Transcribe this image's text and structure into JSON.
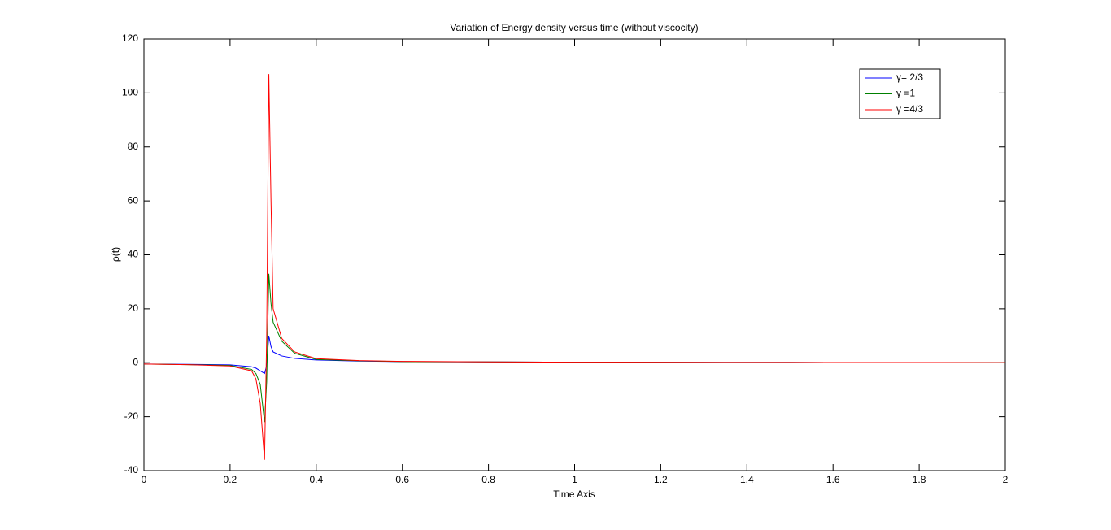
{
  "chart_data": {
    "type": "line",
    "title": "Variation of Energy density versus time (without viscocity)",
    "x_label": "Time Axis",
    "y_label": "ρ(t)",
    "x": [
      0,
      0.1,
      0.2,
      0.25,
      0.26,
      0.27,
      0.28,
      0.285,
      0.29,
      0.295,
      0.3,
      0.32,
      0.35,
      0.4,
      0.5,
      0.6,
      0.8,
      1,
      1.5,
      2
    ],
    "series": [
      {
        "name": "γ= 2/3",
        "color": "#0000ff",
        "values": [
          -0.5,
          -0.6,
          -0.8,
          -1.5,
          -2,
          -3,
          -4,
          -1,
          10,
          6,
          4,
          2.5,
          1.6,
          1,
          0.6,
          0.4,
          0.3,
          0.2,
          0.1,
          0.05
        ]
      },
      {
        "name": "γ =1",
        "color": "#008000",
        "values": [
          -0.5,
          -0.7,
          -1,
          -2.5,
          -4,
          -8,
          -22,
          -7,
          33,
          22,
          15,
          8,
          3.5,
          1.2,
          0.7,
          0.4,
          0.3,
          0.2,
          0.1,
          0.05
        ]
      },
      {
        "name": "γ =4/3",
        "color": "#ff0000",
        "values": [
          -0.5,
          -0.7,
          -1.2,
          -3,
          -6,
          -15,
          -36,
          10,
          107,
          60,
          20,
          9,
          4,
          1.5,
          0.8,
          0.5,
          0.3,
          0.2,
          0.1,
          0.05
        ]
      }
    ],
    "xlim": [
      0,
      2
    ],
    "xticks": [
      0,
      0.2,
      0.4,
      0.6,
      0.8,
      1,
      1.2,
      1.4,
      1.6,
      1.8,
      2
    ],
    "ylim": [
      -40,
      120
    ],
    "yticks": [
      -40,
      -20,
      0,
      20,
      40,
      60,
      80,
      100,
      120
    ],
    "grid": false,
    "legend": "northeast"
  }
}
